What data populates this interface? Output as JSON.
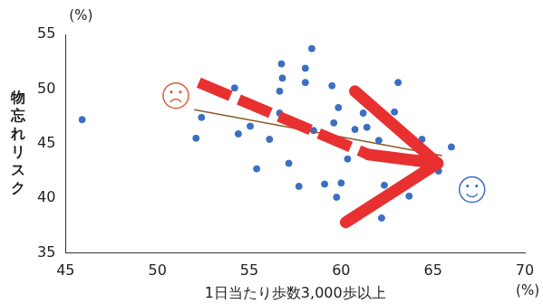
{
  "chart_data": {
    "type": "scatter",
    "xlabel": "1日当たり歩数3,000歩以上",
    "ylabel": "物忘れリスク",
    "annotations": [
      "(%)",
      "(%)"
    ],
    "x": [
      45.9,
      52.1,
      52.4,
      54.2,
      54.4,
      55.05,
      55.4,
      56.1,
      56.65,
      56.75,
      56.8,
      56.65,
      57.15,
      57.7,
      58.05,
      58.05,
      58.4,
      58.5,
      59.1,
      59.5,
      59.75,
      59.85,
      59.6,
      60.0,
      60.35,
      60.75,
      61.2,
      61.4,
      62.05,
      62.35,
      62.2,
      62.9,
      63.1,
      63.7,
      64.4,
      65.3,
      66.0
    ],
    "values": [
      47.2,
      45.5,
      47.4,
      50.1,
      45.9,
      46.6,
      42.7,
      45.4,
      49.8,
      52.3,
      51.0,
      47.8,
      43.2,
      41.1,
      51.9,
      50.6,
      53.7,
      46.2,
      41.3,
      50.3,
      40.1,
      48.3,
      46.9,
      41.4,
      43.6,
      46.3,
      47.8,
      46.5,
      45.3,
      41.2,
      38.2,
      47.9,
      50.6,
      40.2,
      45.4,
      42.5,
      44.7
    ],
    "color": "#3a6fc4",
    "trend_line": {
      "x": [
        52.0,
        65.5
      ],
      "values": [
        48.1,
        43.9
      ],
      "color": "#8b5a2b"
    },
    "xlim": [
      45,
      70
    ],
    "xticks": [
      45,
      50,
      55,
      60,
      65,
      70
    ],
    "ylim": [
      35,
      55
    ],
    "yticks": [
      35,
      40,
      45,
      50,
      55
    ],
    "grid": false
  }
}
